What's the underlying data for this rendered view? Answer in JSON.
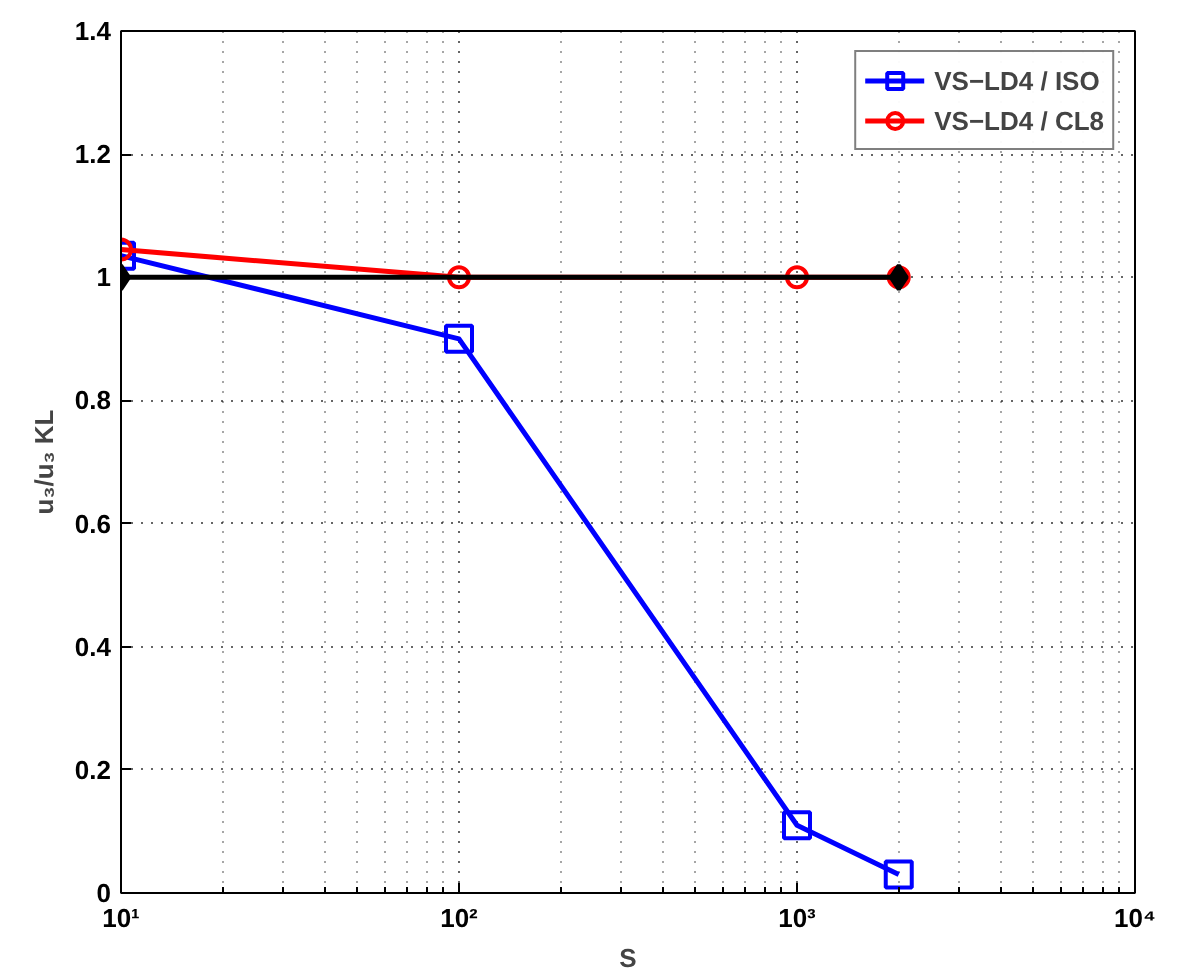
{
  "chart_data": {
    "type": "line",
    "xlabel": "S",
    "ylabel": "u₃/u₃ KL",
    "log": "x",
    "grid": true,
    "legend": "top right",
    "line_style": "solid",
    "x": [
      10,
      100,
      1000,
      2000
    ],
    "xlim": [
      10,
      10000
    ],
    "xticks": [
      {
        "value": 10,
        "label": "10¹"
      },
      {
        "value": 100,
        "label": "10²"
      },
      {
        "value": 1000,
        "label": "10³"
      },
      {
        "value": 10000,
        "label": "10⁴"
      }
    ],
    "ylim": [
      0,
      1.4
    ],
    "yticks": [
      0,
      0.2,
      0.4,
      0.6,
      0.8,
      1,
      1.2,
      1.4
    ],
    "series": [
      {
        "name": "VS−LD4 / ISO",
        "color": "#0000ff",
        "marker": "square",
        "values": [
          1.035,
          0.9,
          0.11,
          0.03
        ]
      },
      {
        "name": "VS−LD4 / CL8",
        "color": "#ff0000",
        "marker": "circle",
        "values": [
          1.045,
          1.0,
          1.0,
          1.0
        ]
      },
      {
        "color": "#000000",
        "marker": "diamond",
        "x": [
          10,
          2000
        ],
        "values": [
          1,
          1
        ]
      }
    ]
  }
}
